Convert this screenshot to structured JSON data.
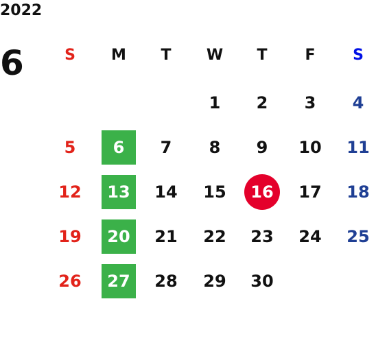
{
  "year": "2022",
  "month": "6",
  "weekdays": [
    "S",
    "M",
    "T",
    "W",
    "T",
    "F",
    "S"
  ],
  "weeks": [
    [
      null,
      null,
      null,
      1,
      2,
      3,
      4
    ],
    [
      5,
      6,
      7,
      8,
      9,
      10,
      11
    ],
    [
      12,
      13,
      14,
      15,
      16,
      17,
      18
    ],
    [
      19,
      20,
      21,
      22,
      23,
      24,
      25
    ],
    [
      26,
      27,
      28,
      29,
      30,
      null,
      null
    ]
  ],
  "today": 16
}
